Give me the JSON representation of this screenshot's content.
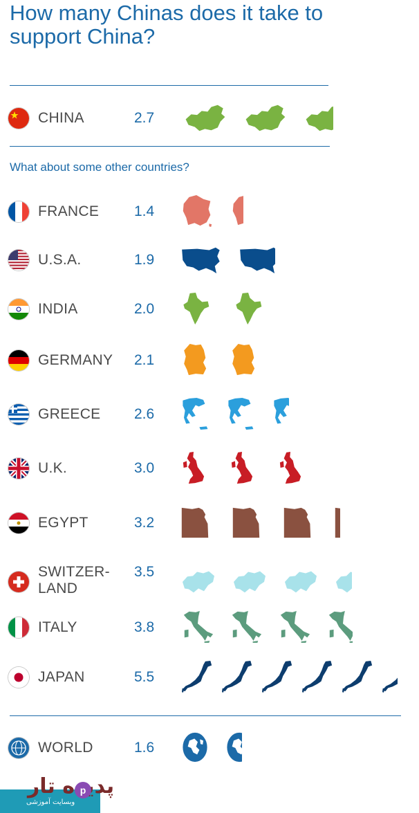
{
  "header": {
    "title": "How many Chinas does it take to support China?",
    "subtitle": "What about some other countries?"
  },
  "colors": {
    "title": "#1c6aa8",
    "text": "#4a4a4a",
    "rule": "#1c6aa8"
  },
  "chart_data": {
    "type": "bar",
    "title": "How many Chinas does it take to support China?",
    "unit_icon": "country-silhouette",
    "categories": [
      "CHINA",
      "FRANCE",
      "U.S.A.",
      "INDIA",
      "GERMANY",
      "GREECE",
      "U.K.",
      "EGYPT",
      "SWITZER-LAND",
      "ITALY",
      "JAPAN",
      "WORLD"
    ],
    "values": [
      2.7,
      1.4,
      1.9,
      2.0,
      2.1,
      2.6,
      3.0,
      3.2,
      3.5,
      3.8,
      5.5,
      1.6
    ],
    "rows": [
      {
        "name": "CHINA",
        "value": 2.7,
        "value_label": "2.7",
        "icon": "china-map-icon",
        "color": "#7ab342",
        "flag": "china"
      },
      {
        "name": "FRANCE",
        "value": 1.4,
        "value_label": "1.4",
        "icon": "france-map-icon",
        "color": "#e27667",
        "flag": "france"
      },
      {
        "name": "U.S.A.",
        "value": 1.9,
        "value_label": "1.9",
        "icon": "usa-map-icon",
        "color": "#0a4d8c",
        "flag": "usa"
      },
      {
        "name": "INDIA",
        "value": 2.0,
        "value_label": "2.0",
        "icon": "india-map-icon",
        "color": "#7ab342",
        "flag": "india"
      },
      {
        "name": "GERMANY",
        "value": 2.1,
        "value_label": "2.1",
        "icon": "germany-map-icon",
        "color": "#f39a1f",
        "flag": "germany"
      },
      {
        "name": "GREECE",
        "value": 2.6,
        "value_label": "2.6",
        "icon": "greece-map-icon",
        "color": "#2b9fdc",
        "flag": "greece"
      },
      {
        "name": "U.K.",
        "value": 3.0,
        "value_label": "3.0",
        "icon": "uk-map-icon",
        "color": "#c81d25",
        "flag": "uk"
      },
      {
        "name": "EGYPT",
        "value": 3.2,
        "value_label": "3.2",
        "icon": "egypt-map-icon",
        "color": "#8a5140",
        "flag": "egypt"
      },
      {
        "name": "SWITZER-\nLAND",
        "value": 3.5,
        "value_label": "3.5",
        "icon": "switzerland-map-icon",
        "color": "#a8e2ea",
        "flag": "switzerland"
      },
      {
        "name": "ITALY",
        "value": 3.8,
        "value_label": "3.8",
        "icon": "italy-map-icon",
        "color": "#5c9c7e",
        "flag": "italy"
      },
      {
        "name": "JAPAN",
        "value": 5.5,
        "value_label": "5.5",
        "icon": "japan-map-icon",
        "color": "#0d3d6e",
        "flag": "japan"
      },
      {
        "name": "WORLD",
        "value": 1.6,
        "value_label": "1.6",
        "icon": "globe-icon",
        "color": "#1c6aa8",
        "flag": "world"
      }
    ]
  },
  "logo": {
    "text": "پدیده تار",
    "sub": "وبسایت آموزشی",
    "mark": "p"
  }
}
